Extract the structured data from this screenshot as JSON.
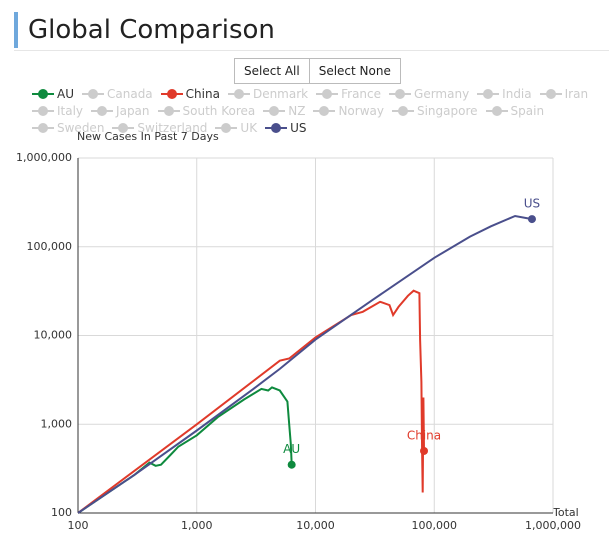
{
  "page": {
    "title": "Global Comparison",
    "buttons": [
      "Select All",
      "Select None"
    ]
  },
  "chart_data": {
    "type": "line",
    "xlog": true,
    "ylog": true,
    "grid": true,
    "ylabel": "New Cases In Past 7 Days",
    "xlabel": "Total",
    "xlim": [
      100,
      1000000
    ],
    "ylim": [
      100,
      1000000
    ],
    "xticks": [
      100,
      {
        "value": 1000,
        "label": "1,000"
      },
      {
        "value": 10000,
        "label": "10,000"
      },
      {
        "value": 100000,
        "label": "100,000"
      },
      {
        "value": 1000000,
        "label": "1,000,000"
      }
    ],
    "yticks": [
      100,
      {
        "value": 1000,
        "label": "1,000"
      },
      {
        "value": 10000,
        "label": "10,000"
      },
      {
        "value": 100000,
        "label": "100,000"
      },
      {
        "value": 1000000,
        "label": "1,000,000"
      }
    ],
    "series": [
      {
        "name": "AU",
        "color": "#0e8a3e",
        "visible": true,
        "x": [
          100,
          300,
          400,
          450,
          500,
          600,
          700,
          1000,
          1500,
          2500,
          3500,
          4000,
          4300,
          5000,
          5800,
          6000,
          6200,
          6300
        ],
        "values": [
          100,
          270,
          370,
          340,
          350,
          450,
          560,
          750,
          1200,
          1900,
          2500,
          2400,
          2600,
          2400,
          1800,
          1000,
          600,
          350
        ]
      },
      {
        "name": "Canada",
        "color": "#cccccc",
        "visible": false
      },
      {
        "name": "China",
        "color": "#e03a2a",
        "visible": true,
        "x": [
          100,
          1000,
          5000,
          6000,
          10000,
          20000,
          25000,
          35000,
          42000,
          45000,
          50000,
          60000,
          67000,
          75000,
          76000,
          78000,
          79000,
          80000,
          81000,
          81500,
          82000
        ],
        "values": [
          100,
          1000,
          5200,
          5500,
          9500,
          17000,
          18500,
          24000,
          22000,
          17000,
          21000,
          28000,
          32000,
          30000,
          9000,
          3000,
          500,
          170,
          2000,
          1000,
          500
        ]
      },
      {
        "name": "Denmark",
        "color": "#cccccc",
        "visible": false
      },
      {
        "name": "France",
        "color": "#cccccc",
        "visible": false
      },
      {
        "name": "Germany",
        "color": "#cccccc",
        "visible": false
      },
      {
        "name": "India",
        "color": "#cccccc",
        "visible": false
      },
      {
        "name": "Iran",
        "color": "#cccccc",
        "visible": false
      },
      {
        "name": "Italy",
        "color": "#cccccc",
        "visible": false
      },
      {
        "name": "Japan",
        "color": "#cccccc",
        "visible": false
      },
      {
        "name": "South Korea",
        "color": "#cccccc",
        "visible": false
      },
      {
        "name": "NZ",
        "color": "#cccccc",
        "visible": false
      },
      {
        "name": "Norway",
        "color": "#cccccc",
        "visible": false
      },
      {
        "name": "Singapore",
        "color": "#cccccc",
        "visible": false
      },
      {
        "name": "Spain",
        "color": "#cccccc",
        "visible": false
      },
      {
        "name": "Sweden",
        "color": "#cccccc",
        "visible": false
      },
      {
        "name": "Switzerland",
        "color": "#cccccc",
        "visible": false
      },
      {
        "name": "UK",
        "color": "#cccccc",
        "visible": false
      },
      {
        "name": "US",
        "color": "#4a4f8c",
        "visible": true,
        "x": [
          100,
          300,
          1000,
          3000,
          5000,
          10000,
          30000,
          100000,
          200000,
          300000,
          480000,
          665000
        ],
        "values": [
          100,
          270,
          850,
          2500,
          4200,
          9000,
          25000,
          75000,
          130000,
          170000,
          222000,
          205000
        ]
      }
    ]
  }
}
